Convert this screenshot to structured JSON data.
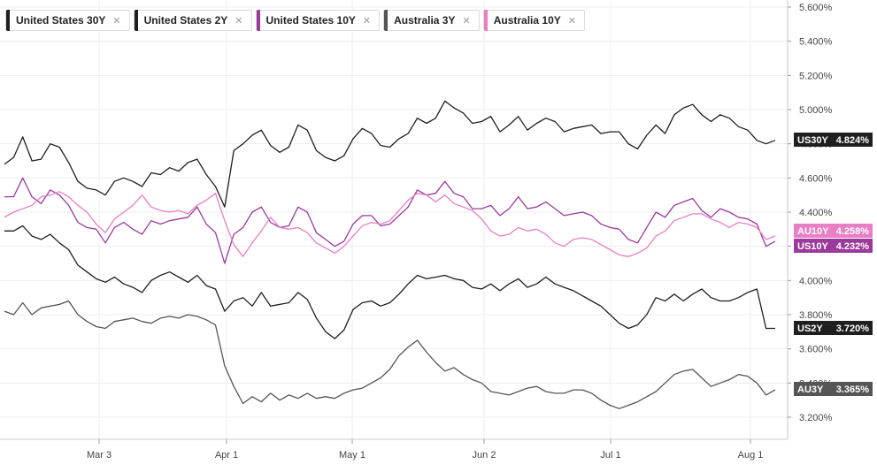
{
  "chart_data": {
    "type": "line",
    "x_labels": [
      "Mar 3",
      "Apr 1",
      "May 1",
      "Jun 2",
      "Jul 1",
      "Aug 1"
    ],
    "ylim": [
      3.1,
      5.6
    ],
    "y_ticks": [
      "5.600%",
      "5.400%",
      "5.200%",
      "5.000%",
      "4.800%",
      "4.600%",
      "4.400%",
      "4.200%",
      "4.000%",
      "3.800%",
      "3.600%",
      "3.400%",
      "3.200%"
    ],
    "grid": true,
    "legend_position": "top-left",
    "series": [
      {
        "name": "United States 30Y",
        "tag": "US30Y",
        "last": "4.824%",
        "color": "#1f1f1f",
        "values": [
          4.68,
          4.72,
          4.84,
          4.7,
          4.71,
          4.8,
          4.78,
          4.69,
          4.58,
          4.54,
          4.53,
          4.5,
          4.58,
          4.6,
          4.58,
          4.55,
          4.63,
          4.62,
          4.66,
          4.64,
          4.69,
          4.71,
          4.62,
          4.55,
          4.43,
          4.76,
          4.8,
          4.85,
          4.88,
          4.79,
          4.75,
          4.78,
          4.91,
          4.88,
          4.76,
          4.72,
          4.7,
          4.73,
          4.83,
          4.89,
          4.86,
          4.79,
          4.78,
          4.83,
          4.86,
          4.95,
          4.92,
          4.95,
          5.05,
          5.01,
          4.98,
          4.92,
          4.93,
          4.96,
          4.87,
          4.91,
          4.96,
          4.88,
          4.92,
          4.95,
          4.93,
          4.87,
          4.89,
          4.9,
          4.91,
          4.86,
          4.87,
          4.87,
          4.8,
          4.77,
          4.85,
          4.91,
          4.86,
          4.97,
          5.01,
          5.03,
          4.97,
          4.93,
          4.97,
          4.95,
          4.9,
          4.88,
          4.82,
          4.8,
          4.82
        ]
      },
      {
        "name": "United States 2Y",
        "tag": "US2Y",
        "last": "3.720%",
        "color": "#1f1f1f",
        "values": [
          4.29,
          4.29,
          4.32,
          4.26,
          4.24,
          4.27,
          4.22,
          4.18,
          4.09,
          4.05,
          4.01,
          3.99,
          4.02,
          3.98,
          3.96,
          3.93,
          4.0,
          4.03,
          4.05,
          4.02,
          3.99,
          4.03,
          3.97,
          3.95,
          3.82,
          3.88,
          3.9,
          3.85,
          3.93,
          3.85,
          3.86,
          3.87,
          3.93,
          3.89,
          3.78,
          3.7,
          3.66,
          3.71,
          3.83,
          3.87,
          3.88,
          3.85,
          3.87,
          3.92,
          3.98,
          4.03,
          4.01,
          4.02,
          4.03,
          4.01,
          4.0,
          3.96,
          3.95,
          3.98,
          3.94,
          3.98,
          4.01,
          3.96,
          3.98,
          4.02,
          3.98,
          3.96,
          3.94,
          3.91,
          3.88,
          3.85,
          3.8,
          3.75,
          3.72,
          3.74,
          3.8,
          3.9,
          3.88,
          3.92,
          3.88,
          3.92,
          3.95,
          3.9,
          3.88,
          3.88,
          3.9,
          3.93,
          3.95,
          3.72,
          3.72
        ]
      },
      {
        "name": "United States 10Y",
        "tag": "US10Y",
        "last": "4.232%",
        "color": "#9b3a9b",
        "values": [
          4.49,
          4.49,
          4.6,
          4.49,
          4.45,
          4.53,
          4.5,
          4.44,
          4.34,
          4.31,
          4.3,
          4.22,
          4.31,
          4.34,
          4.3,
          4.27,
          4.35,
          4.33,
          4.35,
          4.36,
          4.37,
          4.43,
          4.33,
          4.28,
          4.1,
          4.27,
          4.31,
          4.4,
          4.43,
          4.34,
          4.31,
          4.32,
          4.43,
          4.4,
          4.28,
          4.24,
          4.2,
          4.23,
          4.33,
          4.38,
          4.38,
          4.32,
          4.33,
          4.38,
          4.43,
          4.53,
          4.5,
          4.51,
          4.58,
          4.51,
          4.49,
          4.42,
          4.42,
          4.44,
          4.38,
          4.42,
          4.49,
          4.42,
          4.43,
          4.46,
          4.42,
          4.38,
          4.39,
          4.4,
          4.38,
          4.33,
          4.31,
          4.3,
          4.24,
          4.22,
          4.31,
          4.4,
          4.37,
          4.44,
          4.46,
          4.48,
          4.41,
          4.37,
          4.42,
          4.4,
          4.37,
          4.36,
          4.33,
          4.2,
          4.23
        ]
      },
      {
        "name": "Australia 3Y",
        "tag": "AU3Y",
        "last": "3.365%",
        "color": "#555555",
        "values": [
          3.82,
          3.8,
          3.87,
          3.8,
          3.84,
          3.85,
          3.86,
          3.88,
          3.8,
          3.76,
          3.73,
          3.72,
          3.76,
          3.77,
          3.78,
          3.76,
          3.75,
          3.78,
          3.79,
          3.78,
          3.8,
          3.79,
          3.77,
          3.74,
          3.5,
          3.38,
          3.28,
          3.32,
          3.29,
          3.34,
          3.3,
          3.33,
          3.31,
          3.34,
          3.31,
          3.32,
          3.31,
          3.34,
          3.36,
          3.37,
          3.4,
          3.43,
          3.48,
          3.56,
          3.61,
          3.65,
          3.58,
          3.52,
          3.47,
          3.49,
          3.45,
          3.42,
          3.4,
          3.35,
          3.34,
          3.33,
          3.35,
          3.37,
          3.38,
          3.35,
          3.34,
          3.34,
          3.36,
          3.36,
          3.34,
          3.3,
          3.27,
          3.25,
          3.27,
          3.29,
          3.32,
          3.35,
          3.4,
          3.45,
          3.47,
          3.48,
          3.43,
          3.38,
          3.4,
          3.42,
          3.45,
          3.44,
          3.4,
          3.33,
          3.36
        ]
      },
      {
        "name": "Australia 10Y",
        "tag": "AU10Y",
        "last": "4.258%",
        "color": "#e87fc4",
        "values": [
          4.37,
          4.4,
          4.42,
          4.44,
          4.49,
          4.5,
          4.52,
          4.49,
          4.44,
          4.4,
          4.33,
          4.28,
          4.36,
          4.4,
          4.44,
          4.5,
          4.43,
          4.41,
          4.4,
          4.41,
          4.39,
          4.44,
          4.47,
          4.51,
          4.35,
          4.21,
          4.14,
          4.22,
          4.29,
          4.37,
          4.31,
          4.3,
          4.31,
          4.28,
          4.22,
          4.19,
          4.16,
          4.2,
          4.26,
          4.32,
          4.34,
          4.33,
          4.35,
          4.41,
          4.47,
          4.51,
          4.5,
          4.46,
          4.5,
          4.45,
          4.43,
          4.41,
          4.36,
          4.29,
          4.26,
          4.27,
          4.31,
          4.29,
          4.3,
          4.27,
          4.22,
          4.2,
          4.24,
          4.25,
          4.24,
          4.21,
          4.18,
          4.15,
          4.14,
          4.16,
          4.19,
          4.26,
          4.29,
          4.35,
          4.37,
          4.39,
          4.39,
          4.36,
          4.34,
          4.31,
          4.34,
          4.33,
          4.31,
          4.24,
          4.26
        ]
      }
    ]
  }
}
